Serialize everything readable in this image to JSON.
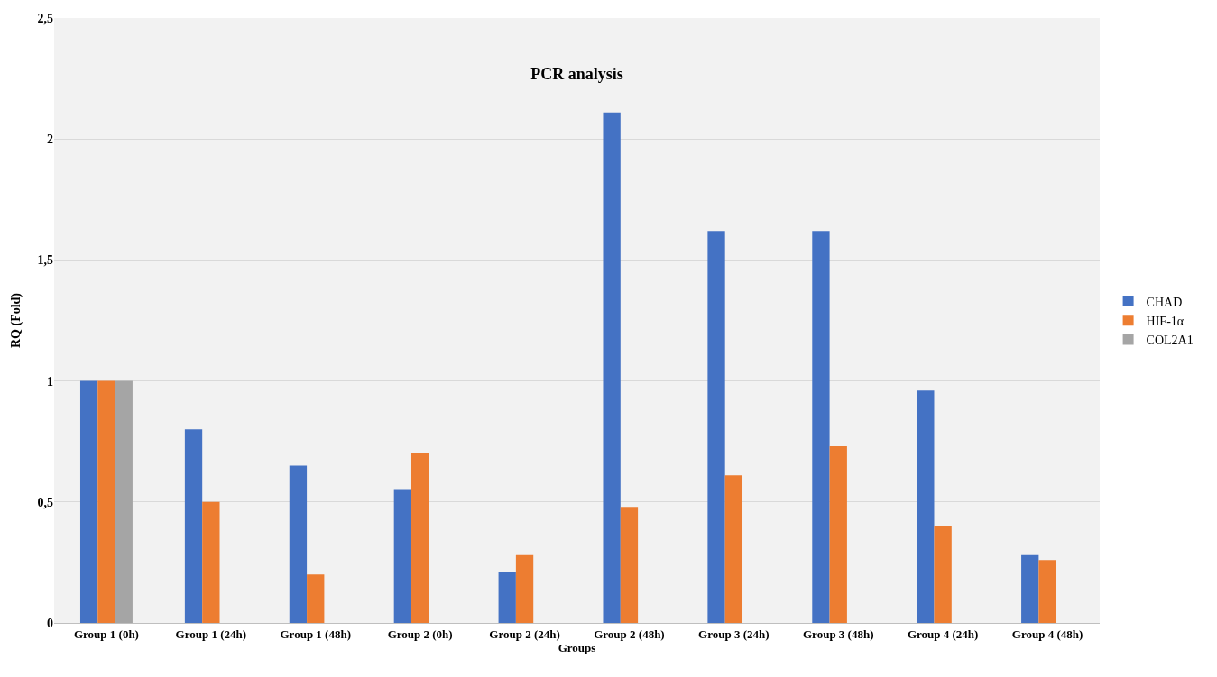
{
  "chart_data": {
    "type": "bar",
    "title": "PCR analysis",
    "xlabel": "Groups",
    "ylabel": "RQ (Fold)",
    "categories": [
      "Group 1 (0h)",
      "Group 1 (24h)",
      "Group 1 (48h)",
      "Group 2 (0h)",
      "Group 2 (24h)",
      "Group 2 (48h)",
      "Group 3 (24h)",
      "Group 3 (48h)",
      "Group 4 (24h)",
      "Group 4 (48h)"
    ],
    "series": [
      {
        "name": "CHAD",
        "color": "#4472c4",
        "values": [
          1.0,
          0.8,
          0.65,
          0.55,
          0.21,
          2.11,
          1.62,
          1.62,
          0.96,
          0.28
        ]
      },
      {
        "name": "HIF-1α",
        "color": "#ed7d31",
        "values": [
          1.0,
          0.5,
          0.2,
          0.7,
          0.28,
          0.48,
          0.61,
          0.73,
          0.4,
          0.26
        ]
      },
      {
        "name": "COL2A1",
        "color": "#a5a5a5",
        "values": [
          1.0,
          null,
          null,
          null,
          null,
          null,
          null,
          null,
          null,
          null
        ]
      }
    ],
    "ylim": [
      0,
      2.5
    ],
    "yticks": [
      0,
      {
        "value": 0.5,
        "label": "0,5"
      },
      1,
      {
        "value": 1.5,
        "label": "1,5"
      },
      2,
      {
        "value": 2.5,
        "label": "2,5"
      }
    ],
    "grid": "y",
    "legend": "right"
  }
}
